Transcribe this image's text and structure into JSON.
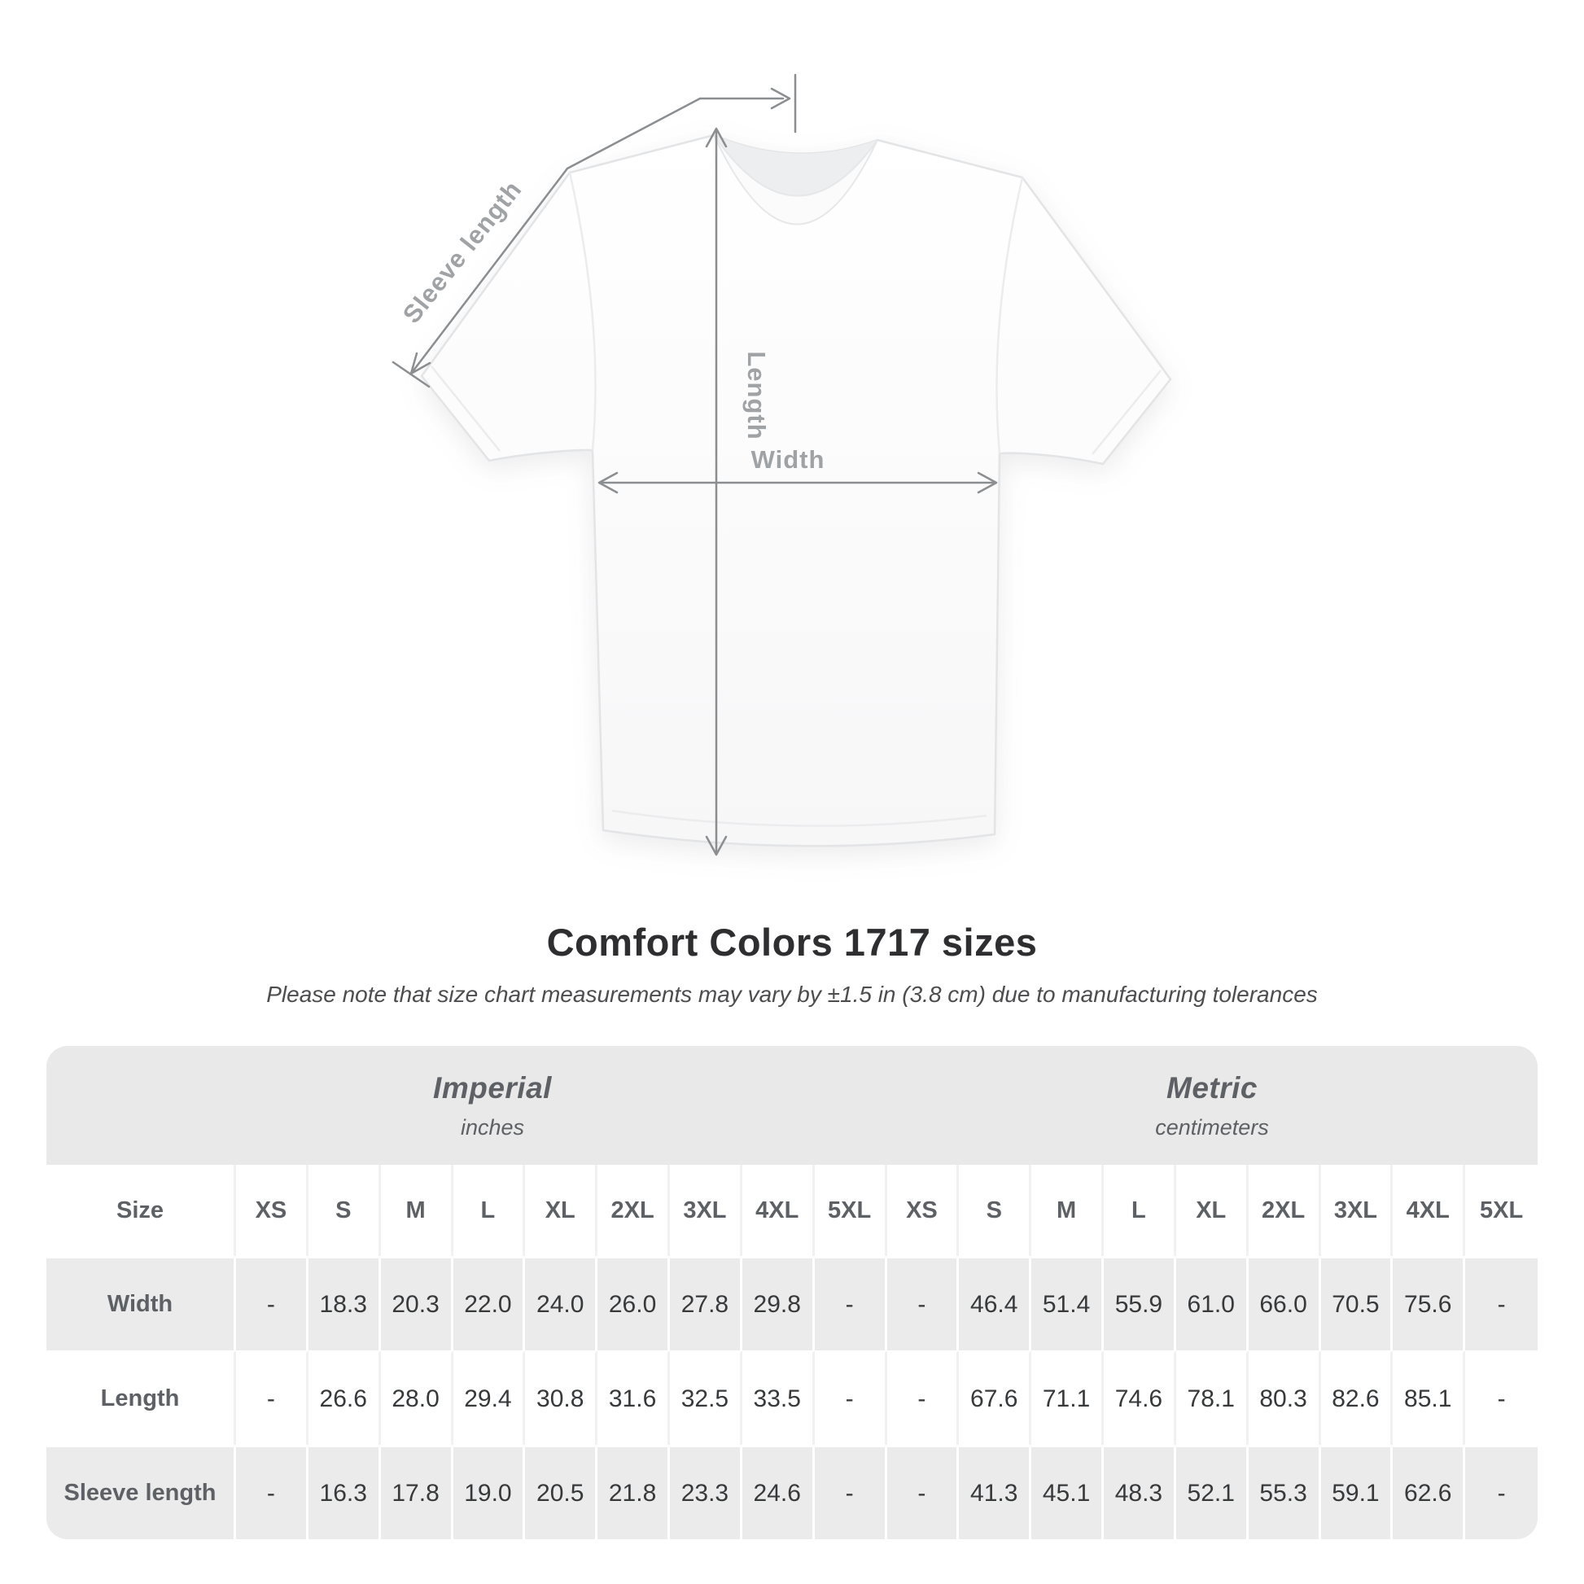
{
  "diagram": {
    "sleeve_length_label": "Sleeve length",
    "length_label": "Length",
    "width_label": "Width"
  },
  "title": "Comfort Colors 1717 sizes",
  "subtitle": "Please note that size chart measurements may vary by ±1.5 in (3.8 cm) due to manufacturing tolerances",
  "table": {
    "size_header": "Size",
    "groups": [
      {
        "name": "Imperial",
        "unit": "inches"
      },
      {
        "name": "Metric",
        "unit": "centimeters"
      }
    ],
    "sizes": [
      "XS",
      "S",
      "M",
      "L",
      "XL",
      "2XL",
      "3XL",
      "4XL",
      "5XL"
    ],
    "rows": [
      {
        "label": "Width",
        "imperial": [
          "-",
          "18.3",
          "20.3",
          "22.0",
          "24.0",
          "26.0",
          "27.8",
          "29.8",
          "-"
        ],
        "metric": [
          "-",
          "46.4",
          "51.4",
          "55.9",
          "61.0",
          "66.0",
          "70.5",
          "75.6",
          "-"
        ]
      },
      {
        "label": "Length",
        "imperial": [
          "-",
          "26.6",
          "28.0",
          "29.4",
          "30.8",
          "31.6",
          "32.5",
          "33.5",
          "-"
        ],
        "metric": [
          "-",
          "67.6",
          "71.1",
          "74.6",
          "78.1",
          "80.3",
          "82.6",
          "85.1",
          "-"
        ]
      },
      {
        "label": "Sleeve length",
        "imperial": [
          "-",
          "16.3",
          "17.8",
          "19.0",
          "20.5",
          "21.8",
          "23.3",
          "24.6",
          "-"
        ],
        "metric": [
          "-",
          "41.3",
          "45.1",
          "48.3",
          "52.1",
          "55.3",
          "59.1",
          "62.6",
          "-"
        ]
      }
    ]
  },
  "chart_data": {
    "type": "table",
    "title": "Comfort Colors 1717 sizes",
    "note": "Size chart measurements may vary by ±1.5 in (3.8 cm) due to manufacturing tolerances",
    "units": [
      "inches",
      "centimeters"
    ],
    "sizes": [
      "XS",
      "S",
      "M",
      "L",
      "XL",
      "2XL",
      "3XL",
      "4XL",
      "5XL"
    ],
    "measurements": [
      {
        "label": "Width",
        "inches": [
          null,
          18.3,
          20.3,
          22.0,
          24.0,
          26.0,
          27.8,
          29.8,
          null
        ],
        "centimeters": [
          null,
          46.4,
          51.4,
          55.9,
          61.0,
          66.0,
          70.5,
          75.6,
          null
        ]
      },
      {
        "label": "Length",
        "inches": [
          null,
          26.6,
          28.0,
          29.4,
          30.8,
          31.6,
          32.5,
          33.5,
          null
        ],
        "centimeters": [
          null,
          67.6,
          71.1,
          74.6,
          78.1,
          80.3,
          82.6,
          85.1,
          null
        ]
      },
      {
        "label": "Sleeve length",
        "inches": [
          null,
          16.3,
          17.8,
          19.0,
          20.5,
          21.8,
          23.3,
          24.6,
          null
        ],
        "centimeters": [
          null,
          41.3,
          45.1,
          48.3,
          52.1,
          55.3,
          59.1,
          62.6,
          null
        ]
      }
    ]
  }
}
